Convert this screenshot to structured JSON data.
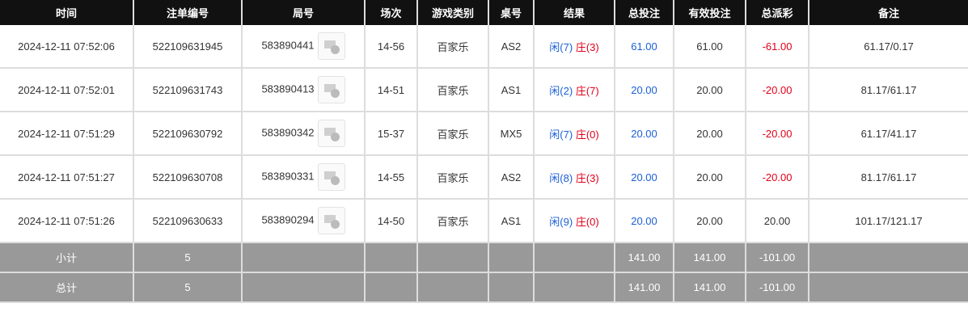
{
  "headers": [
    "时间",
    "注单编号",
    "局号",
    "场次",
    "游戏类别",
    "桌号",
    "结果",
    "总投注",
    "有效投注",
    "总派彩",
    "备注"
  ],
  "rows": [
    {
      "time": "2024-12-11 07:52:06",
      "bet_id": "522109631945",
      "round": "583890441",
      "session": "14-56",
      "game": "百家乐",
      "table": "AS2",
      "player": "闲(7)",
      "banker": "庄(3)",
      "total": "61.00",
      "valid": "61.00",
      "payout": "-61.00",
      "note": "61.17/0.17"
    },
    {
      "time": "2024-12-11 07:52:01",
      "bet_id": "522109631743",
      "round": "583890413",
      "session": "14-51",
      "game": "百家乐",
      "table": "AS1",
      "player": "闲(2)",
      "banker": "庄(7)",
      "total": "20.00",
      "valid": "20.00",
      "payout": "-20.00",
      "note": "81.17/61.17"
    },
    {
      "time": "2024-12-11 07:51:29",
      "bet_id": "522109630792",
      "round": "583890342",
      "session": "15-37",
      "game": "百家乐",
      "table": "MX5",
      "player": "闲(7)",
      "banker": "庄(0)",
      "total": "20.00",
      "valid": "20.00",
      "payout": "-20.00",
      "note": "61.17/41.17"
    },
    {
      "time": "2024-12-11 07:51:27",
      "bet_id": "522109630708",
      "round": "583890331",
      "session": "14-55",
      "game": "百家乐",
      "table": "AS2",
      "player": "闲(8)",
      "banker": "庄(3)",
      "total": "20.00",
      "valid": "20.00",
      "payout": "-20.00",
      "note": "81.17/61.17"
    },
    {
      "time": "2024-12-11 07:51:26",
      "bet_id": "522109630633",
      "round": "583890294",
      "session": "14-50",
      "game": "百家乐",
      "table": "AS1",
      "player": "闲(9)",
      "banker": "庄(0)",
      "total": "20.00",
      "valid": "20.00",
      "payout": "20.00",
      "note": "101.17/121.17"
    }
  ],
  "summary": [
    {
      "label": "小计",
      "count": "5",
      "total": "141.00",
      "valid": "141.00",
      "payout": "-101.00"
    },
    {
      "label": "总计",
      "count": "5",
      "total": "141.00",
      "valid": "141.00",
      "payout": "-101.00"
    }
  ],
  "colors": {
    "player": "#1a5fd6",
    "banker": "#e0001a",
    "header_bg": "#111111",
    "summary_bg": "#999999"
  }
}
